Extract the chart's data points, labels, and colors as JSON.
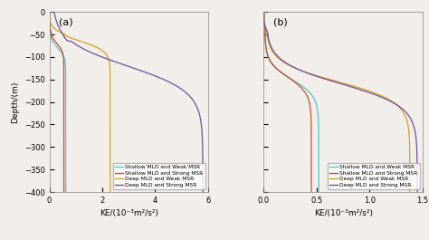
{
  "title_a": "(a)",
  "title_b": "(b)",
  "xlabel": "KE/(10⁻³m²/s²)",
  "ylabel": "Depth/(m)",
  "ylim": [
    -400,
    0
  ],
  "xlim_a": [
    0,
    6
  ],
  "xlim_b": [
    0,
    1.5
  ],
  "xticks_a": [
    0,
    2,
    4,
    6
  ],
  "xticks_b": [
    0,
    0.5,
    1.0,
    1.5
  ],
  "yticks": [
    0,
    -50,
    -100,
    -150,
    -200,
    -250,
    -300,
    -350,
    -400
  ],
  "colors": {
    "shallow_weak": "#4DC3D4",
    "shallow_strong": "#C8502A",
    "deep_weak": "#D4A020",
    "deep_strong": "#7050A0"
  },
  "legend_labels": [
    "Shallow MLD and Weak MSR",
    "Shallow MLD and Strong MSR",
    "Deep MLD and Weak MSR",
    "Deep MLD and Strong MSR"
  ],
  "background_color": "#f2eeea"
}
